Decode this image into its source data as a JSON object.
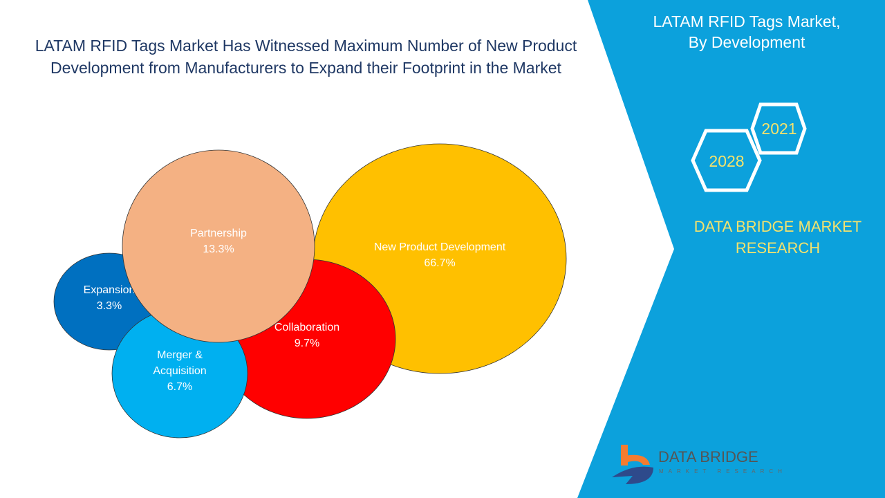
{
  "header": {
    "title": "LATAM RFID Tags Market Has Witnessed Maximum Number of New Product Development from Manufacturers to Expand their Footprint in the Market"
  },
  "panel": {
    "title_line1": "LATAM RFID Tags Market,",
    "title_line2": "By Development",
    "year_end": "2028",
    "year_start": "2021",
    "brand": "DATA BRIDGE MARKET RESEARCH",
    "logo_text": "DATA BRIDGE",
    "logo_sub": "MARKET RESEARCH",
    "color": "#0ca1dc"
  },
  "chart_data": {
    "type": "bubble",
    "title": "LATAM RFID Tags Market Has Witnessed Maximum Number of New Product Development from Manufacturers to Expand their Footprint in the Market",
    "unit": "%",
    "series": [
      {
        "name": "Expansion",
        "value": 3.3,
        "label": "3.3%",
        "color": "#0070c0"
      },
      {
        "name": "New Product Development",
        "value": 66.7,
        "label": "66.7%",
        "color": "#ffc000"
      },
      {
        "name": "Collaboration",
        "value": 9.7,
        "label": "9.7%",
        "color": "#ff0000"
      },
      {
        "name": "Merger & Acquisition",
        "value": 6.7,
        "label": "6.7%",
        "color": "#00b0f0"
      },
      {
        "name": "Partnership",
        "value": 13.3,
        "label": "13.3%",
        "color": "#f4b183"
      }
    ]
  }
}
